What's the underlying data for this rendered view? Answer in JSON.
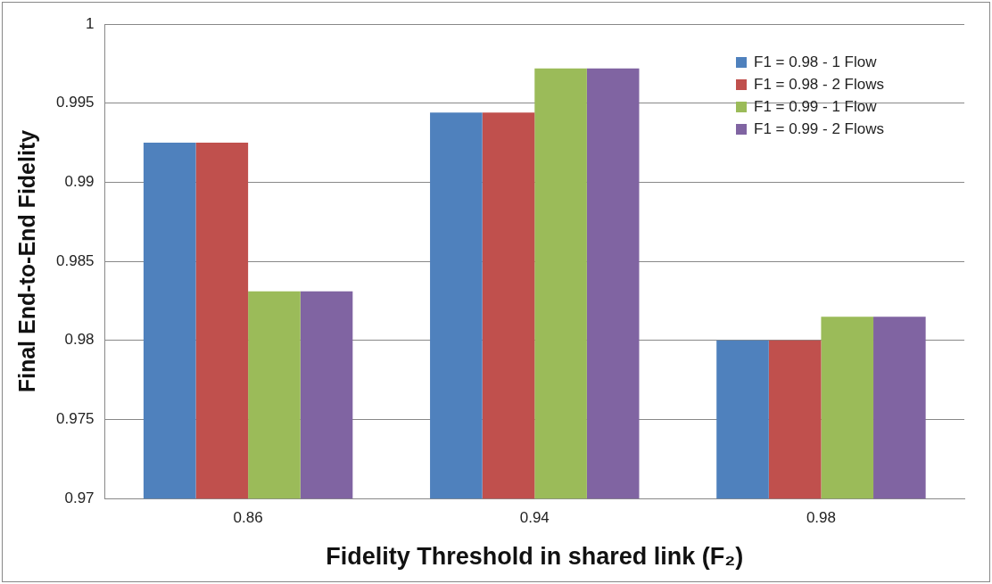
{
  "chart_data": {
    "type": "bar",
    "xlabel": "Fidelity Threshold in shared link (F₂)",
    "ylabel": "Final End-to-End Fidelity",
    "categories": [
      "0.86",
      "0.94",
      "0.98"
    ],
    "series": [
      {
        "name": "F1 = 0.98 - 1 Flow",
        "color": "#4f81bd",
        "values": [
          0.9925,
          0.9944,
          0.98
        ]
      },
      {
        "name": "F1 = 0.98 - 2 Flows",
        "color": "#c0504d",
        "values": [
          0.9925,
          0.9944,
          0.98
        ]
      },
      {
        "name": "F1 = 0.99 - 1 Flow",
        "color": "#9bbb59",
        "values": [
          0.9831,
          0.9972,
          0.9815
        ]
      },
      {
        "name": "F1 = 0.99 - 2 Flows",
        "color": "#8064a2",
        "values": [
          0.9831,
          0.9972,
          0.9815
        ]
      }
    ],
    "ylim": [
      0.97,
      1
    ],
    "yticks": [
      0.97,
      0.975,
      0.98,
      0.985,
      0.99,
      0.995,
      1
    ],
    "grid": "y",
    "legend": "top right"
  }
}
